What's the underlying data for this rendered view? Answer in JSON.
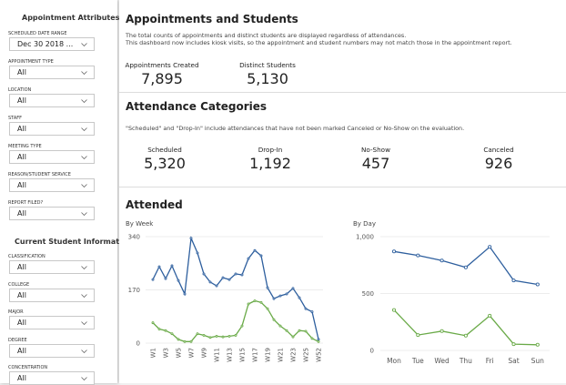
{
  "sidebar": {
    "attributes_title": "Appointment Attributes",
    "attribute_filters": [
      {
        "label": "SCHEDULED DATE RANGE",
        "value": "Dec 30 2018 ..."
      },
      {
        "label": "APPOINTMENT TYPE",
        "value": "All"
      },
      {
        "label": "LOCATION",
        "value": "All"
      },
      {
        "label": "STAFF",
        "value": "All"
      },
      {
        "label": "MEETING TYPE",
        "value": "All"
      },
      {
        "label": "REASON/STUDENT SERVICE",
        "value": "All"
      },
      {
        "label": "REPORT FILED?",
        "value": "All"
      }
    ],
    "student_title": "Current Student Information",
    "student_filters": [
      {
        "label": "CLASSIFICATION",
        "value": "All"
      },
      {
        "label": "COLLEGE",
        "value": "All"
      },
      {
        "label": "MAJOR",
        "value": "All"
      },
      {
        "label": "DEGREE",
        "value": "All"
      },
      {
        "label": "CONCENTRATION",
        "value": "All"
      }
    ]
  },
  "summary": {
    "title": "Appointments and Students",
    "description": [
      "The total counts of appointments and distinct students are displayed regardless of attendances.",
      "This dashboard now includes kiosk visits, so the appointment and student numbers may not match those in the appointment report."
    ],
    "stats": [
      {
        "label": "Appointments Created",
        "value": "7,895"
      },
      {
        "label": "Distinct Students",
        "value": "5,130"
      }
    ]
  },
  "attendance": {
    "title": "Attendance Categories",
    "note": "\"Scheduled\" and \"Drop-In\" include attendances that have not been marked Canceled or No-Show on the evaluation.",
    "stats": [
      {
        "label": "Scheduled",
        "value": "5,320"
      },
      {
        "label": "Drop-In",
        "value": "1,192"
      },
      {
        "label": "No-Show",
        "value": "457"
      },
      {
        "label": "Canceled",
        "value": "926"
      }
    ]
  },
  "attended": {
    "title": "Attended"
  },
  "chart_data": [
    {
      "type": "line",
      "title": "By Week",
      "categories": [
        "W1",
        null,
        "W3",
        null,
        "W5",
        null,
        "W7",
        null,
        "W9",
        null,
        "W11",
        null,
        "W13",
        null,
        "W15",
        null,
        "W17",
        null,
        "W19",
        null,
        "W21",
        null,
        "W23",
        null,
        "W25",
        null,
        "W52"
      ],
      "series": [
        {
          "color": "#2e5f9e",
          "values": [
            203,
            244,
            206,
            247,
            200,
            157,
            335,
            288,
            221,
            195,
            183,
            209,
            203,
            221,
            218,
            270,
            296,
            279,
            177,
            142,
            151,
            157,
            175,
            145,
            110,
            100,
            12
          ]
        },
        {
          "color": "#6aaa48",
          "values": [
            65,
            45,
            40,
            30,
            12,
            5,
            5,
            30,
            25,
            18,
            22,
            20,
            22,
            25,
            55,
            125,
            135,
            130,
            110,
            75,
            55,
            40,
            20,
            40,
            38,
            15,
            5
          ]
        }
      ],
      "ylim": [
        0,
        340
      ],
      "yticks": [
        0,
        170,
        340
      ],
      "grid": true
    },
    {
      "type": "line",
      "title": "By Day",
      "categories": [
        "Mon",
        "Tue",
        "Wed",
        "Thu",
        "Fri",
        "Sat",
        "Sun"
      ],
      "series": [
        {
          "color": "#2e5f9e",
          "values": [
            870,
            835,
            790,
            730,
            910,
            615,
            580
          ]
        },
        {
          "color": "#6aaa48",
          "values": [
            355,
            135,
            170,
            130,
            305,
            55,
            50
          ]
        }
      ],
      "ylim": [
        0,
        1000
      ],
      "yticks": [
        0,
        500,
        {
          "value": 1000,
          "label": "1,000"
        }
      ],
      "grid": true
    }
  ]
}
